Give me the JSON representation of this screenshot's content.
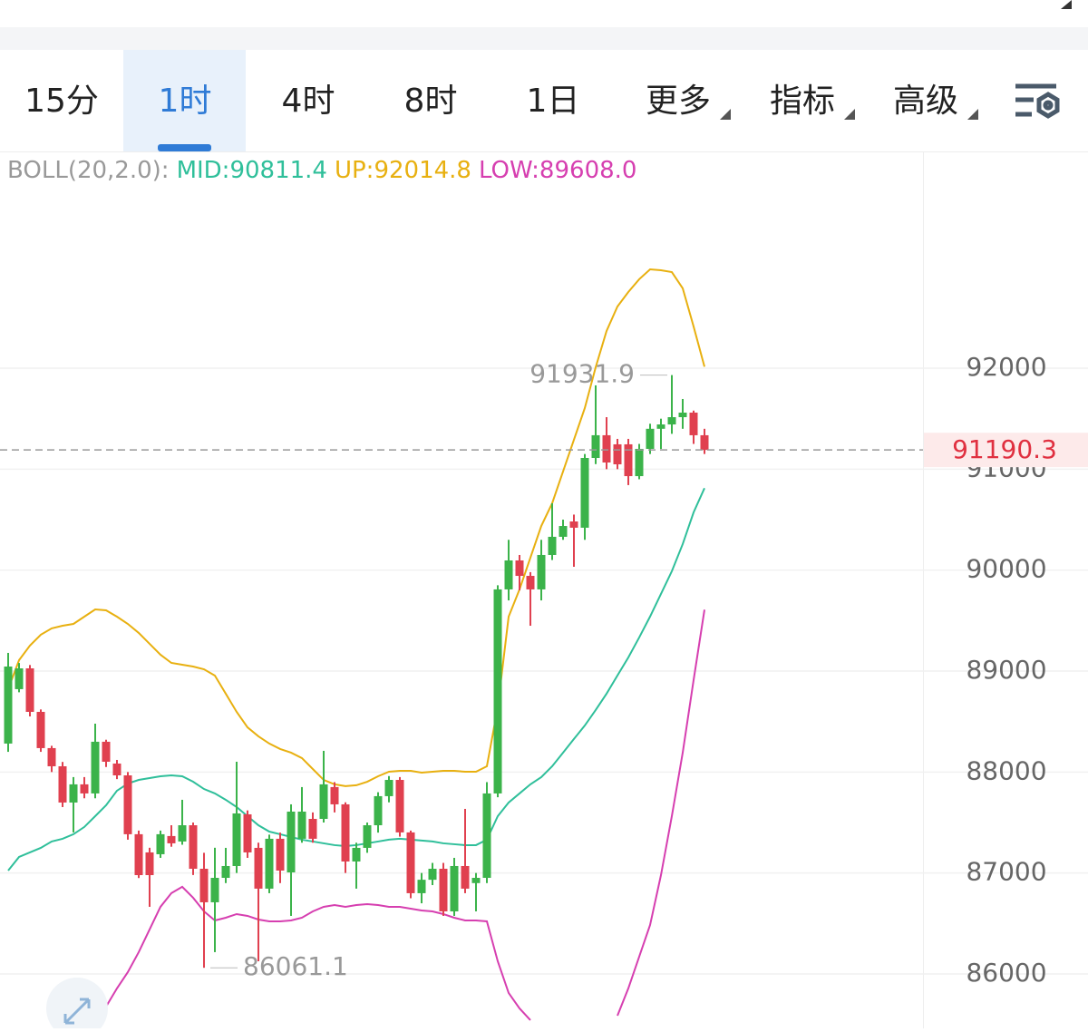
{
  "tabs": {
    "items": [
      "15分",
      "1时",
      "4时",
      "8时",
      "1日",
      "更多",
      "指标",
      "高级"
    ],
    "active": 1
  },
  "chart_data": {
    "type": "candlestick",
    "indicator_label": "BOLL(20,2.0):",
    "up_color": "#3bb34a",
    "down_color": "#e0404f",
    "open": [
      88282,
      88821,
      89027,
      88596,
      88237,
      88057,
      87698,
      87878,
      87788,
      88300,
      88084,
      87967,
      87384,
      87204,
      87186,
      87366,
      87312,
      87473,
      87042,
      86710,
      86952,
      87069,
      87581,
      87249,
      86845,
      87339,
      87006,
      87339,
      87536,
      87536,
      87851,
      87680,
      87114,
      87249,
      87473,
      87761,
      87922,
      87402,
      86800,
      86933,
      87042,
      86620,
      87069,
      86900,
      86952,
      87788,
      89809,
      90096,
      89943,
      89809,
      90150,
      90330,
      90482,
      90420,
      91111,
      91336,
      91246,
      91246,
      90931,
      91201,
      91400,
      91443,
      91515,
      91560,
      91336
    ],
    "high": [
      89180,
      89080,
      89060,
      88620,
      88260,
      88100,
      87950,
      87950,
      88479,
      88320,
      88120,
      88000,
      87420,
      87250,
      87420,
      87473,
      87725,
      87500,
      87200,
      87250,
      87249,
      88102,
      87620,
      87300,
      87380,
      87400,
      87680,
      87851,
      87600,
      88210,
      87900,
      87700,
      87300,
      87500,
      87800,
      87960,
      87950,
      87420,
      87000,
      87100,
      87100,
      87150,
      87635,
      87000,
      87900,
      89850,
      90300,
      90150,
      89980,
      90300,
      90662,
      90500,
      90550,
      91150,
      91830,
      91515,
      91300,
      91300,
      91250,
      91450,
      91500,
      91931.9,
      91695,
      91580,
      91400
    ],
    "low": [
      88200,
      88790,
      88551,
      88200,
      88000,
      87653,
      87402,
      87740,
      87740,
      88050,
      87930,
      87330,
      86950,
      86665,
      87150,
      87260,
      87280,
      86980,
      86061.1,
      86216,
      86900,
      87000,
      87150,
      86126,
      86800,
      86900,
      86575,
      87300,
      87300,
      87500,
      87600,
      87000,
      86845,
      87200,
      87400,
      87700,
      87360,
      86750,
      86700,
      86880,
      86575,
      86575,
      86800,
      86620,
      86900,
      87750,
      89700,
      89800,
      89449,
      89700,
      90100,
      90300,
      90033,
      90300,
      91050,
      91000,
      91000,
      90842,
      90900,
      91150,
      91200,
      91350,
      91400,
      91250,
      91150
    ],
    "close": [
      89045,
      89027,
      88596,
      88237,
      88057,
      87698,
      87878,
      87788,
      88300,
      88102,
      87967,
      87384,
      86979,
      86979,
      87384,
      87294,
      87473,
      87042,
      86710,
      86952,
      87069,
      87590,
      87204,
      86845,
      87339,
      87024,
      87608,
      87608,
      87339,
      87878,
      87680,
      87114,
      87249,
      87473,
      87761,
      87922,
      87402,
      86800,
      86933,
      87042,
      86620,
      87069,
      86845,
      86952,
      87788,
      89809,
      90096,
      89943,
      89809,
      90150,
      90330,
      90437,
      90420,
      91111,
      91336,
      91066,
      91048,
      90931,
      91201,
      91400,
      91443,
      91515,
      91560,
      91336,
      91190.3
    ],
    "series": [
      {
        "name": "MID:90811.4",
        "color": "#2fbf9a",
        "values": [
          87024,
          87159,
          87204,
          87249,
          87312,
          87339,
          87384,
          87456,
          87563,
          87671,
          87815,
          87886,
          87922,
          87940,
          87958,
          87967,
          87958,
          87904,
          87832,
          87788,
          87725,
          87653,
          87563,
          87473,
          87410,
          87384,
          87357,
          87330,
          87312,
          87294,
          87276,
          87267,
          87276,
          87294,
          87312,
          87330,
          87339,
          87330,
          87321,
          87312,
          87294,
          87285,
          87276,
          87276,
          87330,
          87563,
          87698,
          87788,
          87878,
          87949,
          88057,
          88192,
          88327,
          88461,
          88614,
          88776,
          88956,
          89135,
          89333,
          89540,
          89764,
          89989,
          90258,
          90572,
          90811.4
        ]
      },
      {
        "name": "UP:92014.8",
        "color": "#e8b010",
        "values": [
          88821,
          89108,
          89252,
          89360,
          89423,
          89449,
          89467,
          89539,
          89611,
          89602,
          89539,
          89467,
          89378,
          89270,
          89162,
          89081,
          89063,
          89045,
          89018,
          88955,
          88776,
          88596,
          88443,
          88354,
          88282,
          88228,
          88192,
          88138,
          88030,
          87922,
          87878,
          87860,
          87869,
          87904,
          87958,
          88003,
          88012,
          88012,
          87994,
          88003,
          88012,
          88012,
          88003,
          88003,
          88057,
          88641,
          89539,
          89809,
          90123,
          90437,
          90662,
          90977,
          91291,
          91605,
          92009,
          92369,
          92611,
          92755,
          92881,
          92979,
          92970,
          92952,
          92791,
          92413,
          92014.8
        ]
      },
      {
        "name": "LOW:89608.0",
        "color": "#d63fb0",
        "values": [
          null,
          null,
          null,
          null,
          null,
          null,
          null,
          null,
          null,
          85677,
          85857,
          86018,
          86216,
          86441,
          86665,
          86800,
          86863,
          86755,
          86620,
          86530,
          86557,
          86593,
          86575,
          86539,
          86521,
          86521,
          86530,
          86557,
          86620,
          86665,
          86683,
          86665,
          86683,
          86692,
          86683,
          86665,
          86665,
          86647,
          86629,
          86620,
          86593,
          86557,
          86530,
          86530,
          86521,
          86126,
          85812,
          85659,
          85542,
          null,
          null,
          null,
          null,
          null,
          null,
          null,
          85587,
          85857,
          86171,
          86485,
          86979,
          87563,
          88192,
          88911,
          89608
        ]
      }
    ],
    "annotations": [
      "91931.9",
      "86061.1",
      "91190.3"
    ],
    "ylim": [
      85461,
      94138
    ],
    "yticks": [
      86000,
      87000,
      88000,
      89000,
      90000,
      91000,
      92000
    ],
    "grid": true
  }
}
